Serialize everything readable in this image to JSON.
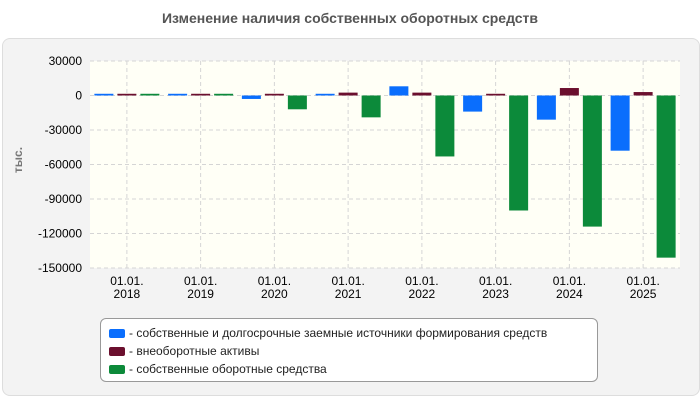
{
  "title": "Изменение наличия собственных оборотных средств",
  "colors": {
    "equity": "#0a6efd",
    "noncurrent": "#6b0f2e",
    "working": "#0c8a3a",
    "plot_bg": "#fffff6",
    "grid": "#d5d5d5"
  },
  "chart_data": {
    "type": "bar",
    "title": "Изменение наличия собственных оборотных средств",
    "ylabel": "тыс.",
    "xlabel": "",
    "ylim": [
      -150000,
      30000
    ],
    "yticks": [
      30000,
      0,
      -30000,
      -60000,
      -90000,
      -120000,
      -150000
    ],
    "ytick_labels": [
      "30000",
      "0",
      "-30000",
      "-60000",
      "-90000",
      "-120000",
      "-150000"
    ],
    "categories": [
      [
        "01.01.",
        "2018"
      ],
      [
        "01.01.",
        "2019"
      ],
      [
        "01.01.",
        "2020"
      ],
      [
        "01.01.",
        "2021"
      ],
      [
        "01.01.",
        "2022"
      ],
      [
        "01.01.",
        "2023"
      ],
      [
        "01.01.",
        "2024"
      ],
      [
        "01.01.",
        "2025"
      ]
    ],
    "grid": true,
    "legend_position": "bottom",
    "series": [
      {
        "key": "equity",
        "name": "- собственные и долгосрочные заемные источники формирования средств",
        "values": [
          1500,
          1500,
          -3000,
          1500,
          8000,
          -14000,
          -21000,
          -48000
        ]
      },
      {
        "key": "noncurrent",
        "name": "- внеоборотные активы",
        "values": [
          1500,
          1500,
          1500,
          2500,
          2500,
          1500,
          6500,
          3000
        ]
      },
      {
        "key": "working",
        "name": "- собственные оборотные средства",
        "values": [
          1500,
          1500,
          -12000,
          -19000,
          -53000,
          -100000,
          -114000,
          -141000
        ]
      }
    ]
  }
}
